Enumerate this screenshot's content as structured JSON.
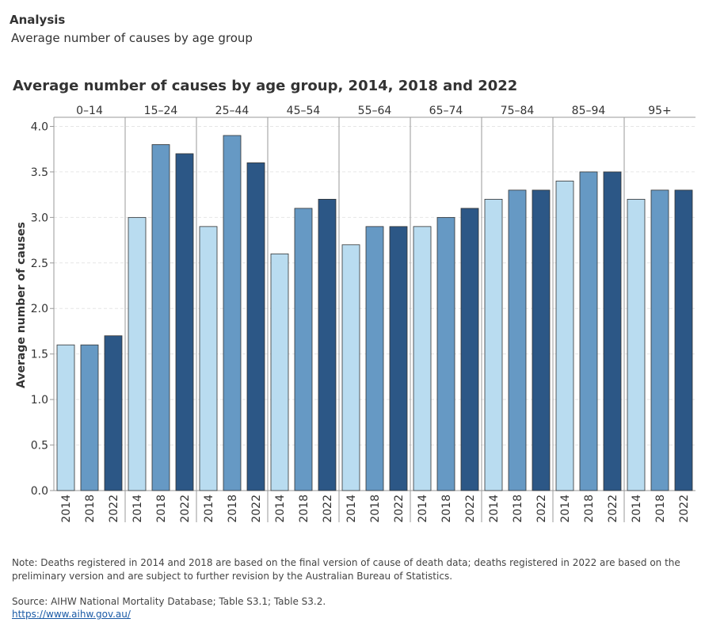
{
  "header": {
    "title": "Analysis",
    "subtitle": "Average number of causes by age group"
  },
  "chart_data": {
    "type": "bar",
    "title": "Average number of causes by age group, 2014, 2018 and 2022",
    "y_label": "Average number of causes",
    "categories": [
      "0–14",
      "15–24",
      "25–44",
      "45–54",
      "55–64",
      "65–74",
      "75–84",
      "85–94",
      "95+"
    ],
    "series": [
      {
        "name": "2014",
        "color": "#b9dcf0",
        "values": [
          1.6,
          3.0,
          2.9,
          2.6,
          2.7,
          2.9,
          3.2,
          3.4,
          3.2
        ]
      },
      {
        "name": "2018",
        "color": "#6699c4",
        "values": [
          1.6,
          3.8,
          3.9,
          3.1,
          2.9,
          3.0,
          3.3,
          3.5,
          3.3
        ]
      },
      {
        "name": "2022",
        "color": "#2c5786",
        "values": [
          1.7,
          3.7,
          3.6,
          3.2,
          2.9,
          3.1,
          3.3,
          3.5,
          3.3
        ]
      }
    ],
    "ylim": [
      0,
      4.1
    ],
    "yticks": [
      {
        "value": 0,
        "label": "0.0"
      },
      {
        "value": 0.5,
        "label": "0.5"
      },
      {
        "value": 1,
        "label": "1.0"
      },
      {
        "value": 1.5,
        "label": "1.5"
      },
      {
        "value": 2,
        "label": "2.0"
      },
      {
        "value": 2.5,
        "label": "2.5"
      },
      {
        "value": 3,
        "label": "3.0"
      },
      {
        "value": 3.5,
        "label": "3.5"
      },
      {
        "value": 4,
        "label": "4.0"
      }
    ],
    "grid": true
  },
  "footer": {
    "note": "Note: Deaths registered in 2014 and 2018 are based on the final version of cause of death data; deaths registered in 2022 are based on the preliminary version and are subject to further revision by the Australian Bureau of Statistics.",
    "source": "Source: AIHW National Mortality Database; Table S3.1; Table S3.2.",
    "link": "https://www.aihw.gov.au/"
  }
}
